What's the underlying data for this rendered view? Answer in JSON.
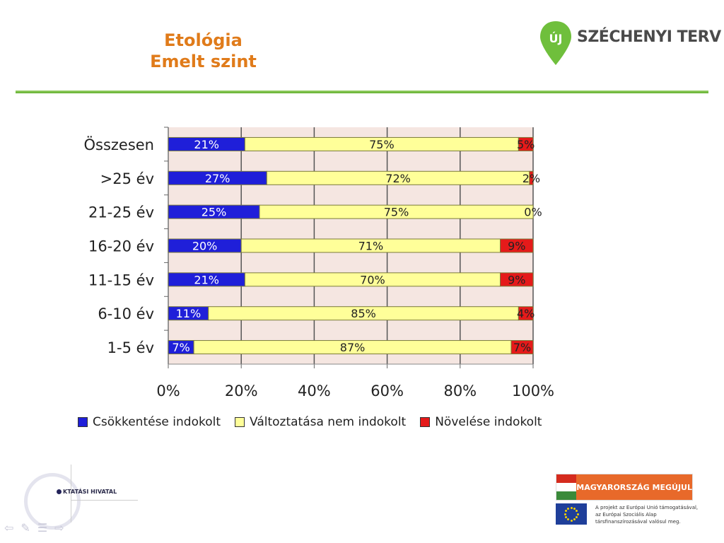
{
  "header": {
    "title_line1": "Etológia",
    "title_line2": "Emelt szint",
    "logo_text": "SZÉCHENYI TERV",
    "logo_badge": "ÚJ"
  },
  "colors": {
    "title": "#e07b1a",
    "green_rule": "#6ab83a",
    "series_blue": "#1f1fd9",
    "series_yellow": "#ffff99",
    "series_red": "#e51a1a",
    "plot_bg": "#f5e6e1"
  },
  "chart_data": {
    "type": "bar",
    "orientation": "horizontal",
    "stacked": "percent",
    "categories": [
      "Összesen",
      ">25 év",
      "21-25 év",
      "16-20 év",
      "11-15 év",
      "6-10 év",
      "1-5 év"
    ],
    "series": [
      {
        "name": "Csökkentése indokolt",
        "color": "#1f1fd9",
        "values": [
          21,
          27,
          25,
          20,
          21,
          11,
          7
        ],
        "labels": [
          "21%",
          "27%",
          "25%",
          "20%",
          "21%",
          "11%",
          "7%"
        ]
      },
      {
        "name": "Változtatása nem indokolt",
        "color": "#ffff99",
        "values": [
          75,
          72,
          75,
          71,
          70,
          85,
          87
        ],
        "labels": [
          "75%",
          "72%",
          "75%",
          "71%",
          "70%",
          "85%",
          "87%"
        ]
      },
      {
        "name": "Növelése indokolt",
        "color": "#e51a1a",
        "values": [
          5,
          2,
          0,
          9,
          9,
          4,
          7
        ],
        "labels": [
          "5%",
          "2%",
          "0%",
          "9%",
          "9%",
          "4%",
          "7%"
        ]
      }
    ],
    "xticks": [
      "0%",
      "20%",
      "40%",
      "60%",
      "80%",
      "100%"
    ],
    "xlim": [
      0,
      100
    ],
    "grid": true,
    "legend_position": "bottom"
  },
  "legend": {
    "items": [
      {
        "label": "Csökkentése indokolt",
        "color": "#1f1fd9"
      },
      {
        "label": "Változtatása nem indokolt",
        "color": "#ffff99"
      },
      {
        "label": "Növelése indokolt",
        "color": "#e51a1a"
      }
    ]
  },
  "footer": {
    "oh_logo_text": "KTATÁSI HIVATAL",
    "mm_text": "MAGYARORSZÁG MEGÚJUL",
    "eu_line1": "A projekt az Európai Unió támogatásával,",
    "eu_line2": "az Európai Szociális Alap",
    "eu_line3": "társfinanszírozásával valósul meg."
  }
}
